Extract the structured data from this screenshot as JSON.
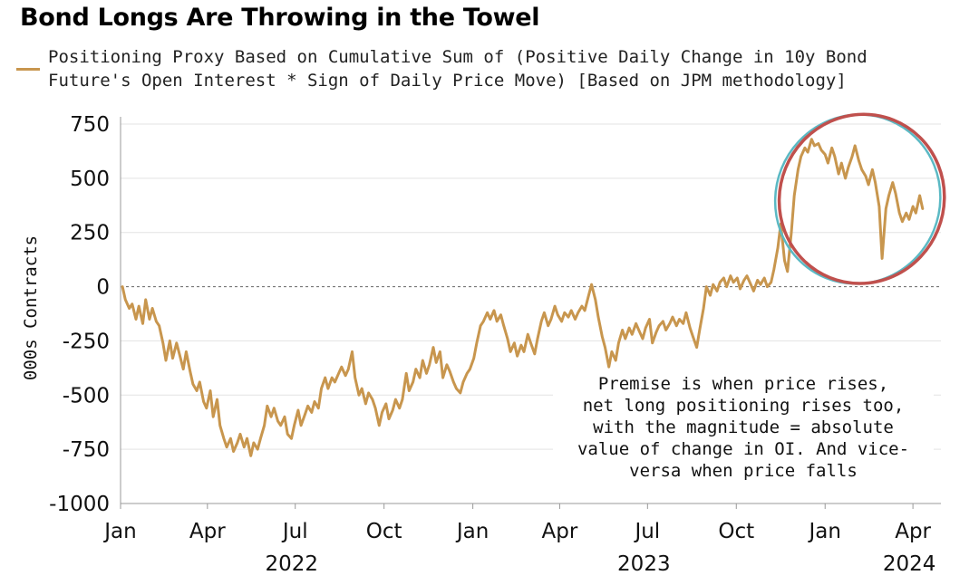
{
  "chart_data": {
    "type": "line",
    "title": "Bond Longs Are Throwing in the Towel",
    "legend": {
      "position": "top-left",
      "entries": [
        "Positioning Proxy Based on Cumulative Sum of (Positive Daily Change in 10y Bond Future's Open Interest * Sign of Daily Price Move) [Based on JPM methodology]"
      ]
    },
    "ylabel": "000s Contracts",
    "ylim": [
      -1000,
      750
    ],
    "yticks": [
      "750",
      "500",
      "250",
      "0",
      "-250",
      "-500",
      "-750",
      "-1000"
    ],
    "yticks_values": [
      750,
      500,
      250,
      0,
      -250,
      -500,
      -750,
      -1000
    ],
    "xlim": [
      "2022-01-01",
      "2024-04-30"
    ],
    "xticks": [
      {
        "label": "Jan",
        "date": "2022-01-01",
        "year": "2022"
      },
      {
        "label": "Apr",
        "date": "2022-04-01"
      },
      {
        "label": "Jul",
        "date": "2022-07-01"
      },
      {
        "label": "Oct",
        "date": "2022-10-01"
      },
      {
        "label": "Jan",
        "date": "2023-01-01",
        "year": "2023"
      },
      {
        "label": "Apr",
        "date": "2023-04-01"
      },
      {
        "label": "Jul",
        "date": "2023-07-01"
      },
      {
        "label": "Oct",
        "date": "2023-10-01"
      },
      {
        "label": "Jan",
        "date": "2024-01-01",
        "year": "2024"
      },
      {
        "label": "Apr",
        "date": "2024-04-01"
      }
    ],
    "year_labels": [
      {
        "label": "2022",
        "date": "2022-07-01"
      },
      {
        "label": "2023",
        "date": "2023-07-01"
      },
      {
        "label": "2024",
        "date": "2024-04-01"
      }
    ],
    "grid": true,
    "zero_line": "dotted",
    "annotation": "Premise is when price rises,\nnet long positioning rises too,\nwith the magnitude = absolute\nvalue of change in OI. And vice-\nversa when price falls",
    "highlight": {
      "shape": "ellipse",
      "from": "2023-11-28",
      "to": "2024-04-20",
      "color": "#c0504d"
    },
    "series": [
      {
        "name": "Positioning Proxy Based on Cumulative Sum of (Positive Daily Change in 10y Bond Future's Open Interest * Sign of Daily Price Move) [Based on JPM methodology]",
        "color": "#c8964e",
        "points": [
          [
            "2022-01-03",
            0
          ],
          [
            "2022-01-06",
            -60
          ],
          [
            "2022-01-10",
            -100
          ],
          [
            "2022-01-13",
            -80
          ],
          [
            "2022-01-17",
            -150
          ],
          [
            "2022-01-20",
            -90
          ],
          [
            "2022-01-24",
            -170
          ],
          [
            "2022-01-27",
            -60
          ],
          [
            "2022-01-31",
            -150
          ],
          [
            "2022-02-03",
            -100
          ],
          [
            "2022-02-07",
            -160
          ],
          [
            "2022-02-10",
            -180
          ],
          [
            "2022-02-14",
            -260
          ],
          [
            "2022-02-17",
            -340
          ],
          [
            "2022-02-21",
            -250
          ],
          [
            "2022-02-24",
            -330
          ],
          [
            "2022-02-28",
            -260
          ],
          [
            "2022-03-03",
            -310
          ],
          [
            "2022-03-07",
            -380
          ],
          [
            "2022-03-10",
            -300
          ],
          [
            "2022-03-14",
            -390
          ],
          [
            "2022-03-17",
            -450
          ],
          [
            "2022-03-21",
            -480
          ],
          [
            "2022-03-24",
            -440
          ],
          [
            "2022-03-28",
            -530
          ],
          [
            "2022-03-31",
            -560
          ],
          [
            "2022-04-04",
            -480
          ],
          [
            "2022-04-07",
            -600
          ],
          [
            "2022-04-11",
            -520
          ],
          [
            "2022-04-14",
            -640
          ],
          [
            "2022-04-18",
            -700
          ],
          [
            "2022-04-21",
            -740
          ],
          [
            "2022-04-25",
            -700
          ],
          [
            "2022-04-28",
            -760
          ],
          [
            "2022-05-02",
            -720
          ],
          [
            "2022-05-05",
            -680
          ],
          [
            "2022-05-09",
            -740
          ],
          [
            "2022-05-12",
            -700
          ],
          [
            "2022-05-16",
            -780
          ],
          [
            "2022-05-19",
            -720
          ],
          [
            "2022-05-23",
            -750
          ],
          [
            "2022-05-26",
            -700
          ],
          [
            "2022-05-30",
            -640
          ],
          [
            "2022-06-02",
            -550
          ],
          [
            "2022-06-06",
            -600
          ],
          [
            "2022-06-09",
            -560
          ],
          [
            "2022-06-13",
            -620
          ],
          [
            "2022-06-16",
            -640
          ],
          [
            "2022-06-20",
            -600
          ],
          [
            "2022-06-23",
            -680
          ],
          [
            "2022-06-27",
            -700
          ],
          [
            "2022-06-30",
            -640
          ],
          [
            "2022-07-04",
            -570
          ],
          [
            "2022-07-07",
            -640
          ],
          [
            "2022-07-11",
            -590
          ],
          [
            "2022-07-14",
            -550
          ],
          [
            "2022-07-18",
            -580
          ],
          [
            "2022-07-21",
            -530
          ],
          [
            "2022-07-25",
            -560
          ],
          [
            "2022-07-28",
            -470
          ],
          [
            "2022-08-01",
            -420
          ],
          [
            "2022-08-04",
            -470
          ],
          [
            "2022-08-08",
            -420
          ],
          [
            "2022-08-11",
            -440
          ],
          [
            "2022-08-15",
            -400
          ],
          [
            "2022-08-18",
            -370
          ],
          [
            "2022-08-22",
            -410
          ],
          [
            "2022-08-25",
            -380
          ],
          [
            "2022-08-29",
            -300
          ],
          [
            "2022-09-01",
            -420
          ],
          [
            "2022-09-05",
            -500
          ],
          [
            "2022-09-08",
            -470
          ],
          [
            "2022-09-12",
            -540
          ],
          [
            "2022-09-15",
            -490
          ],
          [
            "2022-09-19",
            -520
          ],
          [
            "2022-09-22",
            -560
          ],
          [
            "2022-09-26",
            -640
          ],
          [
            "2022-09-29",
            -580
          ],
          [
            "2022-10-03",
            -540
          ],
          [
            "2022-10-06",
            -610
          ],
          [
            "2022-10-10",
            -570
          ],
          [
            "2022-10-13",
            -520
          ],
          [
            "2022-10-17",
            -560
          ],
          [
            "2022-10-20",
            -520
          ],
          [
            "2022-10-24",
            -400
          ],
          [
            "2022-10-27",
            -480
          ],
          [
            "2022-10-31",
            -440
          ],
          [
            "2022-11-03",
            -380
          ],
          [
            "2022-11-07",
            -420
          ],
          [
            "2022-11-10",
            -340
          ],
          [
            "2022-11-14",
            -400
          ],
          [
            "2022-11-17",
            -360
          ],
          [
            "2022-11-21",
            -280
          ],
          [
            "2022-11-24",
            -350
          ],
          [
            "2022-11-28",
            -300
          ],
          [
            "2022-12-01",
            -420
          ],
          [
            "2022-12-05",
            -360
          ],
          [
            "2022-12-08",
            -390
          ],
          [
            "2022-12-12",
            -440
          ],
          [
            "2022-12-15",
            -470
          ],
          [
            "2022-12-19",
            -490
          ],
          [
            "2022-12-22",
            -440
          ],
          [
            "2022-12-26",
            -400
          ],
          [
            "2022-12-29",
            -380
          ],
          [
            "2023-01-02",
            -330
          ],
          [
            "2023-01-05",
            -260
          ],
          [
            "2023-01-09",
            -180
          ],
          [
            "2023-01-12",
            -160
          ],
          [
            "2023-01-16",
            -120
          ],
          [
            "2023-01-19",
            -150
          ],
          [
            "2023-01-23",
            -110
          ],
          [
            "2023-01-26",
            -160
          ],
          [
            "2023-01-30",
            -130
          ],
          [
            "2023-02-02",
            -180
          ],
          [
            "2023-02-06",
            -240
          ],
          [
            "2023-02-09",
            -300
          ],
          [
            "2023-02-13",
            -260
          ],
          [
            "2023-02-16",
            -320
          ],
          [
            "2023-02-20",
            -270
          ],
          [
            "2023-02-23",
            -300
          ],
          [
            "2023-02-27",
            -220
          ],
          [
            "2023-03-02",
            -260
          ],
          [
            "2023-03-06",
            -310
          ],
          [
            "2023-03-09",
            -240
          ],
          [
            "2023-03-13",
            -160
          ],
          [
            "2023-03-16",
            -120
          ],
          [
            "2023-03-20",
            -180
          ],
          [
            "2023-03-23",
            -150
          ],
          [
            "2023-03-27",
            -90
          ],
          [
            "2023-03-30",
            -130
          ],
          [
            "2023-04-03",
            -160
          ],
          [
            "2023-04-06",
            -120
          ],
          [
            "2023-04-10",
            -140
          ],
          [
            "2023-04-13",
            -110
          ],
          [
            "2023-04-17",
            -150
          ],
          [
            "2023-04-20",
            -120
          ],
          [
            "2023-04-24",
            -90
          ],
          [
            "2023-04-27",
            -110
          ],
          [
            "2023-05-01",
            -40
          ],
          [
            "2023-05-04",
            10
          ],
          [
            "2023-05-08",
            -60
          ],
          [
            "2023-05-11",
            -140
          ],
          [
            "2023-05-15",
            -230
          ],
          [
            "2023-05-18",
            -280
          ],
          [
            "2023-05-22",
            -370
          ],
          [
            "2023-05-25",
            -300
          ],
          [
            "2023-05-29",
            -340
          ],
          [
            "2023-06-01",
            -260
          ],
          [
            "2023-06-05",
            -200
          ],
          [
            "2023-06-08",
            -240
          ],
          [
            "2023-06-12",
            -190
          ],
          [
            "2023-06-15",
            -220
          ],
          [
            "2023-06-19",
            -170
          ],
          [
            "2023-06-22",
            -200
          ],
          [
            "2023-06-26",
            -240
          ],
          [
            "2023-06-29",
            -190
          ],
          [
            "2023-07-03",
            -150
          ],
          [
            "2023-07-06",
            -260
          ],
          [
            "2023-07-10",
            -210
          ],
          [
            "2023-07-13",
            -180
          ],
          [
            "2023-07-17",
            -160
          ],
          [
            "2023-07-20",
            -200
          ],
          [
            "2023-07-24",
            -170
          ],
          [
            "2023-07-27",
            -140
          ],
          [
            "2023-07-31",
            -180
          ],
          [
            "2023-08-03",
            -150
          ],
          [
            "2023-08-07",
            -170
          ],
          [
            "2023-08-10",
            -120
          ],
          [
            "2023-08-14",
            -190
          ],
          [
            "2023-08-17",
            -230
          ],
          [
            "2023-08-21",
            -280
          ],
          [
            "2023-08-24",
            -200
          ],
          [
            "2023-08-28",
            -100
          ],
          [
            "2023-08-31",
            0
          ],
          [
            "2023-09-04",
            -40
          ],
          [
            "2023-09-07",
            10
          ],
          [
            "2023-09-11",
            -20
          ],
          [
            "2023-09-14",
            20
          ],
          [
            "2023-09-18",
            40
          ],
          [
            "2023-09-21",
            0
          ],
          [
            "2023-09-25",
            50
          ],
          [
            "2023-09-28",
            20
          ],
          [
            "2023-10-02",
            40
          ],
          [
            "2023-10-05",
            -10
          ],
          [
            "2023-10-09",
            30
          ],
          [
            "2023-10-12",
            50
          ],
          [
            "2023-10-16",
            10
          ],
          [
            "2023-10-19",
            -20
          ],
          [
            "2023-10-23",
            30
          ],
          [
            "2023-10-26",
            10
          ],
          [
            "2023-10-30",
            40
          ],
          [
            "2023-11-02",
            0
          ],
          [
            "2023-11-06",
            20
          ],
          [
            "2023-11-09",
            80
          ],
          [
            "2023-11-13",
            180
          ],
          [
            "2023-11-16",
            290
          ],
          [
            "2023-11-20",
            120
          ],
          [
            "2023-11-23",
            70
          ],
          [
            "2023-11-27",
            250
          ],
          [
            "2023-11-30",
            420
          ],
          [
            "2023-12-04",
            540
          ],
          [
            "2023-12-07",
            600
          ],
          [
            "2023-12-11",
            640
          ],
          [
            "2023-12-14",
            620
          ],
          [
            "2023-12-18",
            680
          ],
          [
            "2023-12-21",
            650
          ],
          [
            "2023-12-25",
            660
          ],
          [
            "2023-12-28",
            630
          ],
          [
            "2024-01-01",
            610
          ],
          [
            "2024-01-04",
            570
          ],
          [
            "2024-01-08",
            640
          ],
          [
            "2024-01-11",
            600
          ],
          [
            "2024-01-15",
            520
          ],
          [
            "2024-01-18",
            570
          ],
          [
            "2024-01-22",
            500
          ],
          [
            "2024-01-25",
            550
          ],
          [
            "2024-01-29",
            600
          ],
          [
            "2024-02-01",
            650
          ],
          [
            "2024-02-05",
            580
          ],
          [
            "2024-02-08",
            540
          ],
          [
            "2024-02-12",
            510
          ],
          [
            "2024-02-15",
            470
          ],
          [
            "2024-02-19",
            540
          ],
          [
            "2024-02-22",
            480
          ],
          [
            "2024-02-26",
            370
          ],
          [
            "2024-02-29",
            130
          ],
          [
            "2024-03-04",
            360
          ],
          [
            "2024-03-07",
            420
          ],
          [
            "2024-03-11",
            480
          ],
          [
            "2024-03-14",
            430
          ],
          [
            "2024-03-18",
            340
          ],
          [
            "2024-03-21",
            300
          ],
          [
            "2024-03-25",
            340
          ],
          [
            "2024-03-28",
            310
          ],
          [
            "2024-04-01",
            370
          ],
          [
            "2024-04-04",
            340
          ],
          [
            "2024-04-08",
            420
          ],
          [
            "2024-04-11",
            360
          ]
        ]
      }
    ]
  }
}
